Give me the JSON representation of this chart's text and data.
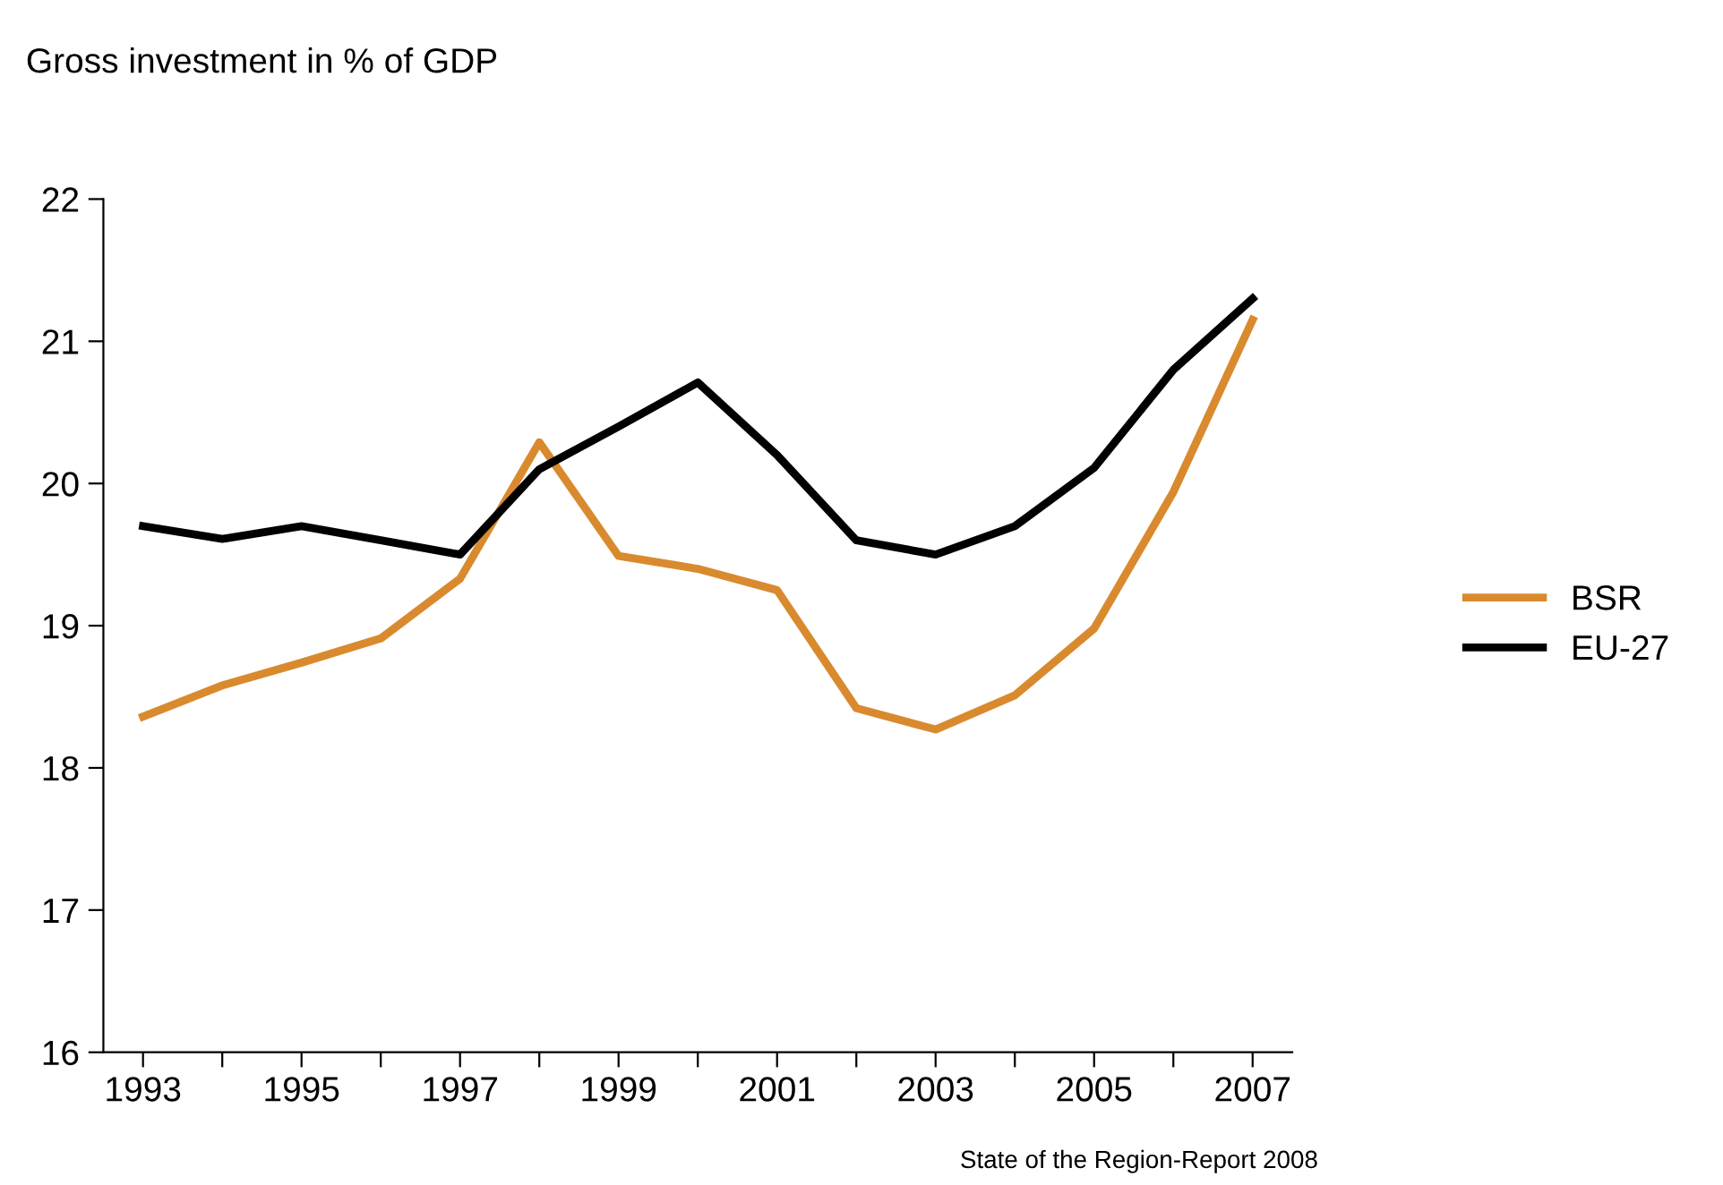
{
  "chart_data": {
    "type": "line",
    "ylabel": "Gross investment in % of GDP",
    "categories": [
      "1993",
      null,
      "1995",
      null,
      "1997",
      null,
      "1999",
      null,
      "2001",
      null,
      "2003",
      null,
      "2005",
      null,
      "2007"
    ],
    "series": [
      {
        "name": "BSR",
        "color": "#d98a2e",
        "values": [
          18.36,
          18.58,
          18.74,
          18.91,
          19.33,
          20.29,
          19.49,
          19.4,
          19.25,
          18.42,
          18.27,
          18.51,
          18.98,
          19.94,
          21.15
        ]
      },
      {
        "name": "EU-27",
        "color": "#000000",
        "values": [
          19.7,
          19.61,
          19.7,
          19.6,
          19.5,
          20.1,
          20.4,
          20.71,
          20.2,
          19.6,
          19.5,
          19.7,
          20.11,
          20.8,
          21.3
        ]
      }
    ],
    "ylim": [
      16,
      22
    ],
    "yticks": [
      16,
      17,
      18,
      19,
      20,
      21,
      22
    ],
    "grid": false,
    "legend": "right",
    "marker": "none",
    "line_style": "solid",
    "annotations": [
      "State of the Region-Report 2008"
    ]
  }
}
